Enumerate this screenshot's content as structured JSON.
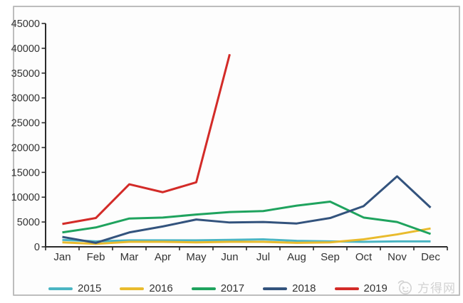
{
  "chart_data": {
    "type": "line",
    "x": [
      "Jan",
      "Feb",
      "Mar",
      "Apr",
      "May",
      "Jun",
      "Jul",
      "Aug",
      "Sep",
      "Oct",
      "Nov",
      "Dec"
    ],
    "series": [
      {
        "name": "2015",
        "color": "#4bb5c3",
        "values": [
          1400,
          1100,
          1300,
          1300,
          1300,
          1400,
          1500,
          1200,
          1100,
          1000,
          1100,
          1100
        ]
      },
      {
        "name": "2016",
        "color": "#e9bb2d",
        "values": [
          900,
          600,
          1000,
          1000,
          900,
          1000,
          1000,
          800,
          900,
          1500,
          2500,
          3700
        ]
      },
      {
        "name": "2017",
        "color": "#1fa35e",
        "values": [
          2900,
          3900,
          5700,
          5900,
          6500,
          7000,
          7200,
          8300,
          9100,
          5900,
          5000,
          2600
        ]
      },
      {
        "name": "2018",
        "color": "#33537d",
        "values": [
          2000,
          800,
          2900,
          4100,
          5500,
          4900,
          5000,
          4700,
          5800,
          8200,
          14200,
          7900
        ]
      },
      {
        "name": "2019",
        "color": "#d32b28",
        "values": [
          4600,
          5800,
          12600,
          11000,
          13000,
          38800,
          null,
          null,
          null,
          null,
          null,
          null
        ]
      }
    ],
    "title": "",
    "xlabel": "",
    "ylabel": "",
    "ylim": [
      0,
      45000
    ],
    "yticks": [
      0,
      5000,
      10000,
      15000,
      20000,
      25000,
      30000,
      35000,
      40000,
      45000
    ],
    "grid": false,
    "legend_position": "bottom"
  },
  "watermark": {
    "text": "方得网"
  },
  "colors": {
    "axis": "#2b2b2b",
    "tick_text": "#333333",
    "frame_border": "#bdbdbd",
    "watermark": "#d2d2d2"
  }
}
